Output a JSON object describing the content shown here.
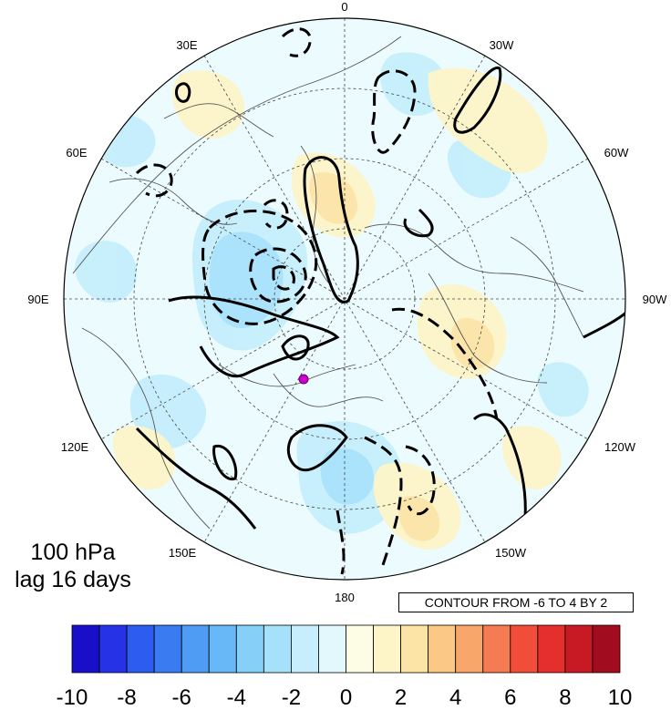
{
  "plot": {
    "level": "100 hPa",
    "lag": "lag 16 days",
    "contour_info": "CONTOUR FROM -6 TO 4 BY 2"
  },
  "longitude_labels": [
    {
      "text": "0",
      "lon": 0
    },
    {
      "text": "30W",
      "lon": -30
    },
    {
      "text": "60W",
      "lon": -60
    },
    {
      "text": "90W",
      "lon": -90
    },
    {
      "text": "120W",
      "lon": -120
    },
    {
      "text": "150W",
      "lon": -150
    },
    {
      "text": "180",
      "lon": 180
    },
    {
      "text": "150E",
      "lon": 150
    },
    {
      "text": "120E",
      "lon": 120
    },
    {
      "text": "90E",
      "lon": 90
    },
    {
      "text": "60E",
      "lon": 60
    },
    {
      "text": "30E",
      "lon": 30
    }
  ],
  "colorbar": {
    "labels": [
      "-10",
      "-8",
      "-6",
      "-4",
      "-2",
      "0",
      "2",
      "4",
      "6",
      "8",
      "10"
    ],
    "colors": [
      "#1a0fc8",
      "#2532e6",
      "#2c5cf0",
      "#3b7bf2",
      "#4f9cf5",
      "#68b8f7",
      "#86cff9",
      "#a6e1fb",
      "#c6eefc",
      "#e3f8fd",
      "#fdfde6",
      "#fdf4c8",
      "#fce3a6",
      "#fbc886",
      "#f8a66a",
      "#f57c52",
      "#f04e3b",
      "#e42f2c",
      "#c81a25",
      "#a10c1e"
    ]
  },
  "colors": {
    "land_outline": "#555555",
    "contour": "#000000",
    "marker": "#cc00cc"
  }
}
